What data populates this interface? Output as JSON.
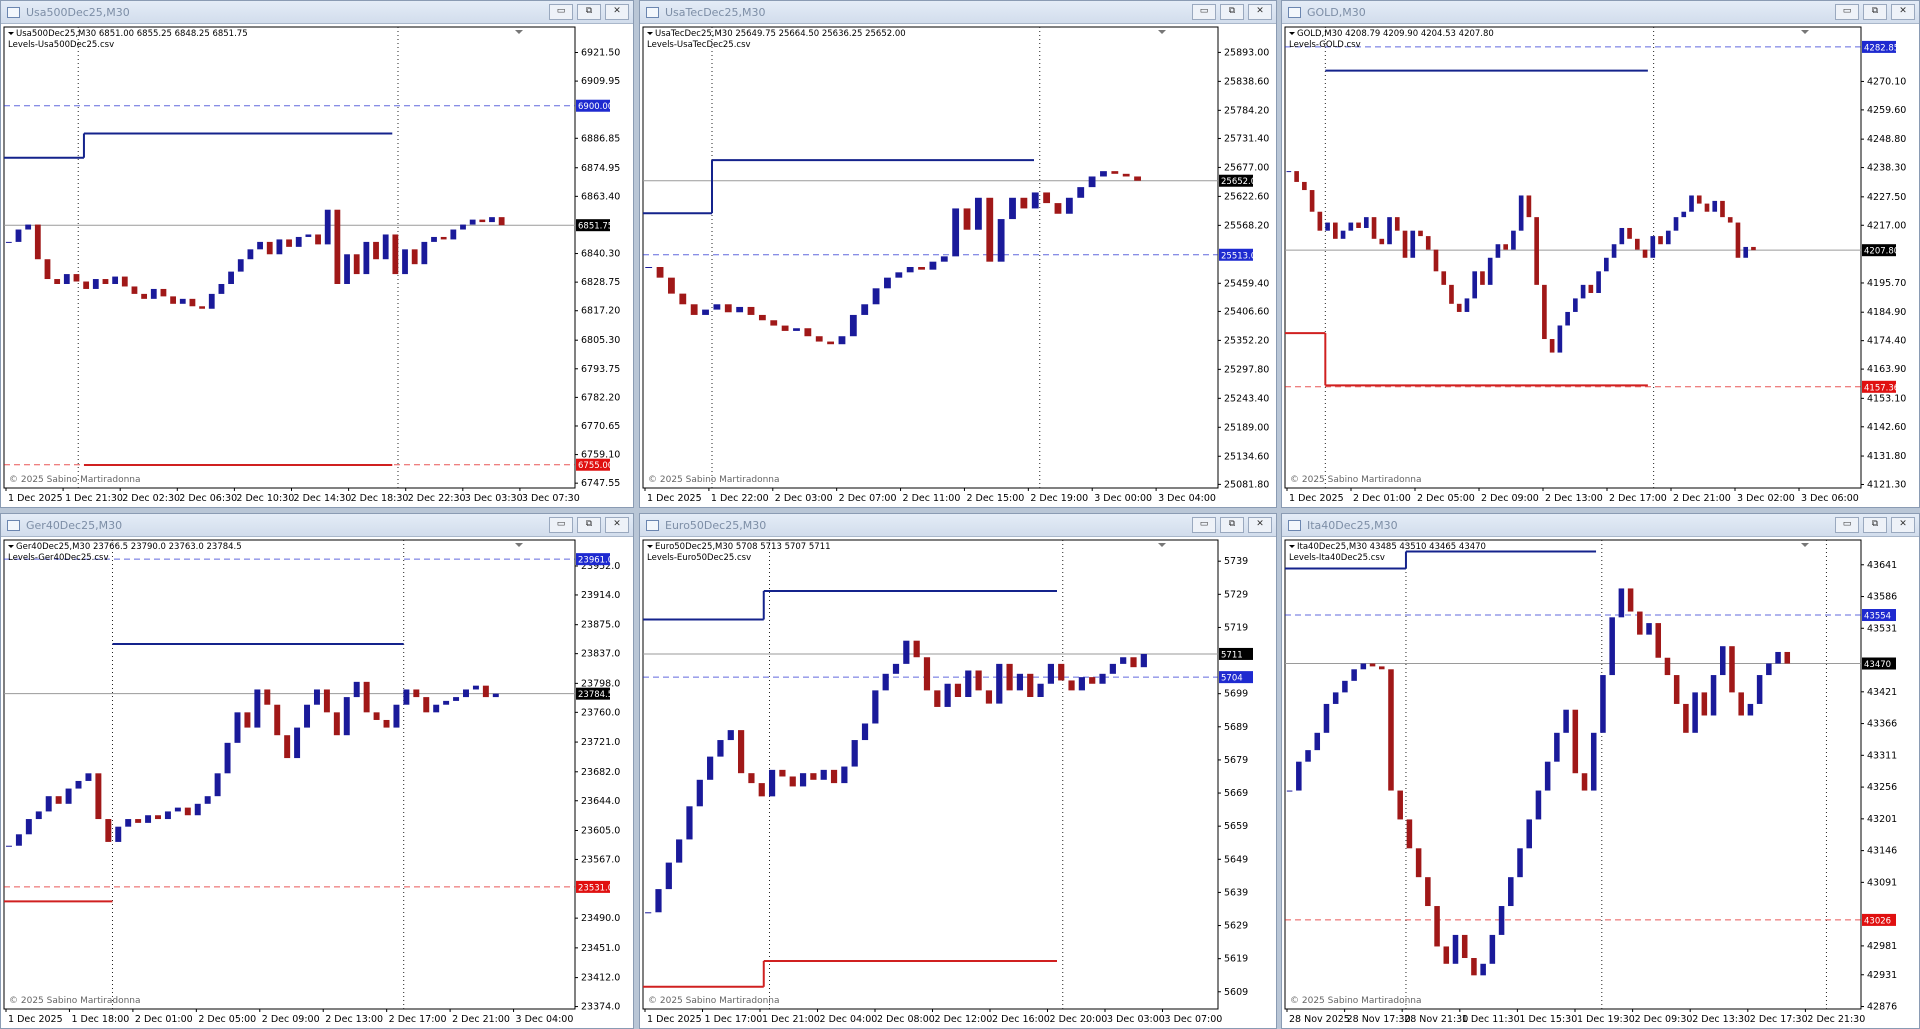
{
  "windows": [
    {
      "title": "Usa500Dec25,M30",
      "info": "Usa500Dec25,M30  6851.00 6855.25 6848.25 6851.75",
      "indicator": "Levels-Usa500Dec25.csv",
      "copyright": "© 2025 Sabino Martiradonna",
      "ylim": [
        6745.6,
        6931.8
      ],
      "yticks": [
        {
          "value": 6921.5,
          "label": "6921.50"
        },
        {
          "value": 6909.95,
          "label": "6909.95"
        },
        {
          "value": 6886.85,
          "label": "6886.85"
        },
        {
          "value": 6874.95,
          "label": "6874.95"
        },
        {
          "value": 6863.4,
          "label": "6863.40"
        },
        {
          "value": 6840.3,
          "label": "6840.30"
        },
        {
          "value": 6828.75,
          "label": "6828.75"
        },
        {
          "value": 6817.2,
          "label": "6817.20"
        },
        {
          "value": 6805.3,
          "label": "6805.30"
        },
        {
          "value": 6793.75,
          "label": "6793.75"
        },
        {
          "value": 6782.2,
          "label": "6782.20"
        },
        {
          "value": 6770.65,
          "label": "6770.65"
        },
        {
          "value": 6759.1,
          "label": "6759.10"
        },
        {
          "value": 6747.55,
          "label": "6747.55"
        }
      ],
      "xlabels": [
        "1 Dec 2025",
        "1 Dec 21:30",
        "2 Dec 02:30",
        "2 Dec 06:30",
        "2 Dec 10:30",
        "2 Dec 14:30",
        "2 Dec 18:30",
        "2 Dec 22:30",
        "3 Dec 03:30",
        "3 Dec 07:30"
      ],
      "levels": [
        {
          "value": 6900,
          "label": "6900.00",
          "color": "#1e2ad0"
        },
        {
          "value": 6755,
          "label": "6755.00",
          "color": "#e01010"
        }
      ],
      "price": {
        "value": 6851.75,
        "label": "6851.75"
      },
      "steps": [
        {
          "color": "#14238c",
          "values": [
            6879,
            6888.8
          ]
        },
        {
          "color": "#d02020",
          "values": [
            6754.9
          ]
        }
      ],
      "closes": [
        6845,
        6850,
        6852,
        6838,
        6830,
        6828,
        6832,
        6829,
        6826,
        6830,
        6828,
        6831,
        6827,
        6824,
        6822,
        6826,
        6823,
        6820,
        6822,
        6819,
        6818,
        6824,
        6828,
        6833,
        6838,
        6842,
        6845,
        6840,
        6846,
        6843,
        6847,
        6848,
        6844,
        6858,
        6828,
        6840,
        6832,
        6845,
        6838,
        6848,
        6832,
        6842,
        6836,
        6845,
        6847,
        6846,
        6850,
        6852,
        6854,
        6853,
        6855,
        6851.75
      ]
    },
    {
      "title": "UsaTecDec25,M30",
      "info": "UsaTecDec25,M30  25649.75 25664.50 25636.25 25652.00",
      "indicator": "Levels-UsaTecDec25.csv",
      "copyright": "© 2025 Sabino Martiradonna",
      "ylim": [
        25075,
        25940.7
      ],
      "yticks": [
        {
          "value": 25893,
          "label": "25893.00"
        },
        {
          "value": 25838.6,
          "label": "25838.60"
        },
        {
          "value": 25784.2,
          "label": "25784.20"
        },
        {
          "value": 25731.4,
          "label": "25731.40"
        },
        {
          "value": 25677,
          "label": "25677.00"
        },
        {
          "value": 25622.6,
          "label": "25622.60"
        },
        {
          "value": 25568.2,
          "label": "25568.20"
        },
        {
          "value": 25459.4,
          "label": "25459.40"
        },
        {
          "value": 25406.6,
          "label": "25406.60"
        },
        {
          "value": 25352.2,
          "label": "25352.20"
        },
        {
          "value": 25297.8,
          "label": "25297.80"
        },
        {
          "value": 25243.4,
          "label": "25243.40"
        },
        {
          "value": 25189,
          "label": "25189.00"
        },
        {
          "value": 25134.6,
          "label": "25134.60"
        },
        {
          "value": 25081.8,
          "label": "25081.80"
        }
      ],
      "xlabels": [
        "1 Dec 2025",
        "1 Dec 22:00",
        "2 Dec 03:00",
        "2 Dec 07:00",
        "2 Dec 11:00",
        "2 Dec 15:00",
        "2 Dec 19:00",
        "3 Dec 00:00",
        "3 Dec 04:00"
      ],
      "levels": [
        {
          "value": 25513,
          "label": "25513.00",
          "color": "#1e2ad0"
        }
      ],
      "price": {
        "value": 25652,
        "label": "25652.00"
      },
      "steps": [
        {
          "color": "#14238c",
          "values": [
            25591,
            25690.8
          ]
        }
      ],
      "closes": [
        25490,
        25470,
        25440,
        25420,
        25400,
        25410,
        25420,
        25405,
        25415,
        25400,
        25390,
        25380,
        25370,
        25375,
        25360,
        25350,
        25345,
        25360,
        25400,
        25420,
        25450,
        25470,
        25480,
        25490,
        25485,
        25500,
        25510,
        25600,
        25560,
        25620,
        25500,
        25580,
        25620,
        25600,
        25630,
        25610,
        25590,
        25620,
        25640,
        25660,
        25670,
        25665,
        25660,
        25652
      ]
    },
    {
      "title": "GOLD,M30",
      "info": "GOLD,M30  4208.79 4209.90 4204.53 4207.80",
      "indicator": "Levels-GOLD.csv",
      "copyright": "© 2025 Sabino Martiradonna",
      "ylim": [
        4120,
        4290.2
      ],
      "yticks": [
        {
          "value": 4270.1,
          "label": "4270.10"
        },
        {
          "value": 4259.6,
          "label": "4259.60"
        },
        {
          "value": 4248.8,
          "label": "4248.80"
        },
        {
          "value": 4238.3,
          "label": "4238.30"
        },
        {
          "value": 4227.5,
          "label": "4227.50"
        },
        {
          "value": 4217,
          "label": "4217.00"
        },
        {
          "value": 4195.7,
          "label": "4195.70"
        },
        {
          "value": 4184.9,
          "label": "4184.90"
        },
        {
          "value": 4174.4,
          "label": "4174.40"
        },
        {
          "value": 4163.9,
          "label": "4163.90"
        },
        {
          "value": 4153.1,
          "label": "4153.10"
        },
        {
          "value": 4142.6,
          "label": "4142.60"
        },
        {
          "value": 4131.8,
          "label": "4131.80"
        },
        {
          "value": 4121.3,
          "label": "4121.30"
        }
      ],
      "xlabels": [
        "1 Dec 2025",
        "2 Dec 01:00",
        "2 Dec 05:00",
        "2 Dec 09:00",
        "2 Dec 13:00",
        "2 Dec 17:00",
        "2 Dec 21:00",
        "3 Dec 02:00",
        "3 Dec 06:00"
      ],
      "levels": [
        {
          "value": 4282.85,
          "label": "4282.85",
          "color": "#1e2ad0"
        },
        {
          "value": 4157.36,
          "label": "4157.36",
          "color": "#e01010"
        }
      ],
      "price": {
        "value": 4207.8,
        "label": "4207.80"
      },
      "steps": [
        {
          "color": "#14238c",
          "values": [
            4274.1
          ]
        },
        {
          "color": "#d02020",
          "values": [
            4177.2,
            4157.9
          ]
        }
      ],
      "closes": [
        4237,
        4233,
        4230,
        4222,
        4215,
        4218,
        4212,
        4215,
        4218,
        4216,
        4220,
        4212,
        4210,
        4220,
        4215,
        4205,
        4215,
        4213,
        4208,
        4200,
        4195,
        4188,
        4185,
        4190,
        4200,
        4195,
        4205,
        4210,
        4208,
        4215,
        4228,
        4220,
        4195,
        4175,
        4170,
        4180,
        4185,
        4190,
        4195,
        4192,
        4200,
        4205,
        4210,
        4216,
        4212,
        4208,
        4205,
        4213,
        4210,
        4215,
        4220,
        4222,
        4228,
        4225,
        4222,
        4226,
        4220,
        4218,
        4205,
        4209,
        4207.8
      ]
    },
    {
      "title": "Ger40Dec25,M30",
      "info": "Ger40Dec25,M30  23766.5 23790.0 23763.0 23784.5",
      "indicator": "Levels-Ger40Dec25.csv",
      "copyright": "© 2025 Sabino Martiradonna",
      "ylim": [
        23370.8,
        23986.1
      ],
      "yticks": [
        {
          "value": 23952,
          "label": "23952.0"
        },
        {
          "value": 23914,
          "label": "23914.0"
        },
        {
          "value": 23875,
          "label": "23875.0"
        },
        {
          "value": 23837,
          "label": "23837.0"
        },
        {
          "value": 23798,
          "label": "23798.0"
        },
        {
          "value": 23760,
          "label": "23760.0"
        },
        {
          "value": 23721,
          "label": "23721.0"
        },
        {
          "value": 23682,
          "label": "23682.0"
        },
        {
          "value": 23644,
          "label": "23644.0"
        },
        {
          "value": 23605,
          "label": "23605.0"
        },
        {
          "value": 23567,
          "label": "23567.0"
        },
        {
          "value": 23490,
          "label": "23490.0"
        },
        {
          "value": 23451,
          "label": "23451.0"
        },
        {
          "value": 23412,
          "label": "23412.0"
        },
        {
          "value": 23374,
          "label": "23374.0"
        }
      ],
      "xlabels": [
        "1 Dec 2025",
        "1 Dec 18:00",
        "2 Dec 01:00",
        "2 Dec 05:00",
        "2 Dec 09:00",
        "2 Dec 13:00",
        "2 Dec 17:00",
        "2 Dec 21:00",
        "3 Dec 04:00"
      ],
      "levels": [
        {
          "value": 23961,
          "label": "23961.0",
          "color": "#1e2ad0"
        },
        {
          "value": 23531,
          "label": "23531.0",
          "color": "#e01010"
        }
      ],
      "price": {
        "value": 23784.5,
        "label": "23784.5"
      },
      "steps": [
        {
          "color": "#14238c",
          "values": [
            23849.7
          ]
        },
        {
          "color": "#d02020",
          "values": [
            23512
          ]
        }
      ],
      "closes": [
        23585,
        23600,
        23620,
        23630,
        23650,
        23640,
        23660,
        23670,
        23680,
        23620,
        23590,
        23610,
        23620,
        23615,
        23625,
        23620,
        23630,
        23635,
        23625,
        23640,
        23650,
        23680,
        23720,
        23760,
        23740,
        23790,
        23770,
        23730,
        23700,
        23740,
        23770,
        23790,
        23760,
        23730,
        23780,
        23800,
        23760,
        23750,
        23740,
        23770,
        23790,
        23780,
        23760,
        23770,
        23775,
        23780,
        23790,
        23795,
        23780,
        23784.5
      ]
    },
    {
      "title": "Euro50Dec25,M30",
      "info": "Euro50Dec25,M30  5708 5713 5707 5711",
      "indicator": "Levels-Euro50Dec25.csv",
      "copyright": "© 2025 Sabino Martiradonna",
      "ylim": [
        5603.8,
        5745.4
      ],
      "yticks": [
        5739,
        5729,
        5719,
        5699,
        5689,
        5679,
        5669,
        5659,
        5649,
        5639,
        5629,
        5619,
        5609
      ],
      "xlabels": [
        "1 Dec 2025",
        "1 Dec 17:00",
        "1 Dec 21:00",
        "2 Dec 04:00",
        "2 Dec 08:00",
        "2 Dec 12:00",
        "2 Dec 16:00",
        "2 Dec 20:00",
        "3 Dec 03:00",
        "3 Dec 07:00"
      ],
      "levels": [
        {
          "value": 5704,
          "label": "5704",
          "color": "#1e2ad0"
        }
      ],
      "price": {
        "value": 5711,
        "label": "5711"
      },
      "steps": [
        {
          "color": "#14238c",
          "values": [
            5721.4,
            5730
          ]
        },
        {
          "color": "#d02020",
          "values": [
            5610.5,
            5618.3
          ]
        }
      ],
      "closes": [
        5633,
        5640,
        5648,
        5655,
        5665,
        5673,
        5680,
        5685,
        5688,
        5675,
        5672,
        5668,
        5676,
        5674,
        5671,
        5675,
        5673,
        5676,
        5672,
        5677,
        5685,
        5690,
        5700,
        5705,
        5708,
        5715,
        5710,
        5700,
        5695,
        5702,
        5698,
        5706,
        5700,
        5696,
        5708,
        5700,
        5705,
        5698,
        5702,
        5708,
        5703,
        5700,
        5704,
        5702,
        5705,
        5708,
        5710,
        5707,
        5711
      ]
    },
    {
      "title": "Ita40Dec25,M30",
      "info": "Ita40Dec25,M30  43485 43510 43465 43470",
      "indicator": "Levels-Ita40Dec25.csv",
      "copyright": "© 2025 Sabino Martiradonna",
      "ylim": [
        42871.7,
        43683.9
      ],
      "yticks": [
        43641,
        43586,
        43531,
        43421,
        43366,
        43311,
        43256,
        43201,
        43146,
        43091,
        42981,
        42931,
        42876
      ],
      "xlabels": [
        "28 Nov 2025",
        "28 Nov 17:30",
        "28 Nov 21:30",
        "1 Dec 11:30",
        "1 Dec 15:30",
        "1 Dec 19:30",
        "2 Dec 09:30",
        "2 Dec 13:30",
        "2 Dec 17:30",
        "2 Dec 21:30"
      ],
      "levels": [
        {
          "value": 43554,
          "label": "43554",
          "color": "#1e2ad0"
        },
        {
          "value": 43026,
          "label": "43026",
          "color": "#e01010"
        }
      ],
      "price": {
        "value": 43470,
        "label": "43470"
      },
      "steps": [
        {
          "color": "#14238c",
          "values": [
            43634.6,
            43664
          ]
        }
      ],
      "closes": [
        43250,
        43300,
        43320,
        43350,
        43400,
        43420,
        43440,
        43460,
        43470,
        43465,
        43460,
        43250,
        43200,
        43150,
        43100,
        43050,
        42980,
        42950,
        43000,
        42960,
        42930,
        42950,
        43000,
        43050,
        43100,
        43150,
        43200,
        43250,
        43300,
        43350,
        43390,
        43280,
        43250,
        43350,
        43450,
        43550,
        43600,
        43560,
        43520,
        43540,
        43480,
        43450,
        43400,
        43350,
        43420,
        43380,
        43450,
        43500,
        43420,
        43380,
        43400,
        43450,
        43470,
        43490,
        43470
      ]
    }
  ]
}
